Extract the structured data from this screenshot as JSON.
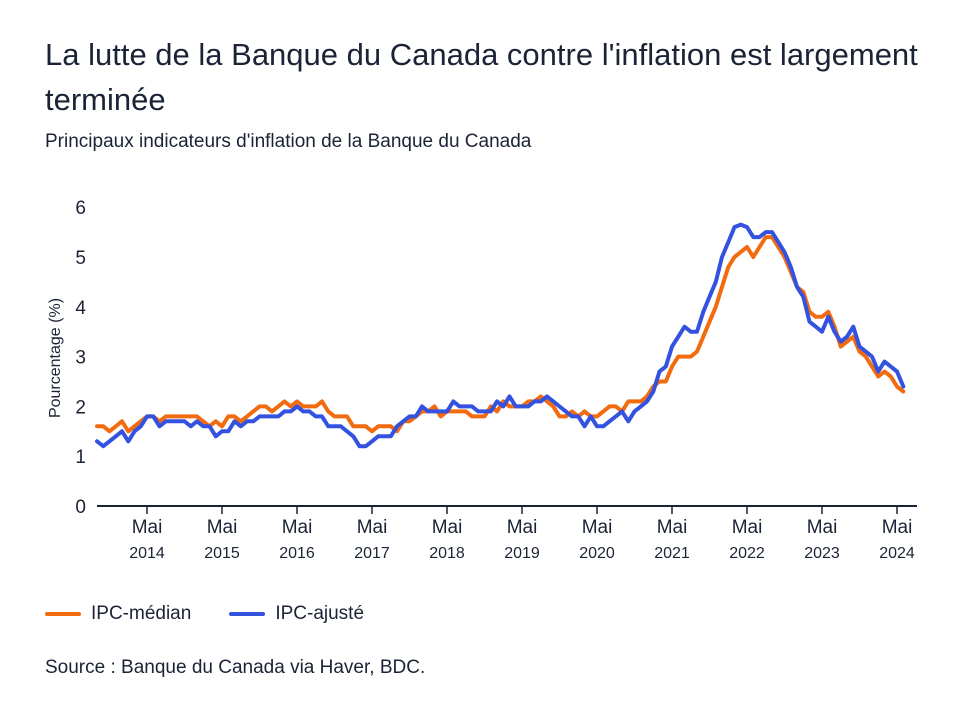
{
  "title": "La lutte de la Banque du Canada contre l'inflation est largement terminée",
  "subtitle": "Principaux indicateurs d'inflation de la Banque du Canada",
  "source": "Source : Banque du Canada via Haver, BDC.",
  "chart_data": {
    "type": "line",
    "ylabel": "Pourcentage (%)",
    "xlabel": "",
    "ylim": [
      0,
      6
    ],
    "yticks": [
      "0",
      "1",
      "2",
      "3",
      "4",
      "5",
      "6"
    ],
    "x_frequency": "monthly",
    "x_start": "2013-09",
    "x_end": "2024-06",
    "xticks": [
      {
        "month": "Mai",
        "year": "2014"
      },
      {
        "month": "Mai",
        "year": "2015"
      },
      {
        "month": "Mai",
        "year": "2016"
      },
      {
        "month": "Mai",
        "year": "2017"
      },
      {
        "month": "Mai",
        "year": "2018"
      },
      {
        "month": "Mai",
        "year": "2019"
      },
      {
        "month": "Mai",
        "year": "2020"
      },
      {
        "month": "Mai",
        "year": "2021"
      },
      {
        "month": "Mai",
        "year": "2022"
      },
      {
        "month": "Mai",
        "year": "2023"
      },
      {
        "month": "Mai",
        "year": "2024"
      }
    ],
    "grid": false,
    "legend_position": "bottom-left",
    "series": [
      {
        "name": "IPC-médian",
        "color": "#f26b0f",
        "values": [
          1.6,
          1.6,
          1.5,
          1.6,
          1.7,
          1.5,
          1.6,
          1.7,
          1.8,
          1.8,
          1.7,
          1.8,
          1.8,
          1.8,
          1.8,
          1.8,
          1.8,
          1.7,
          1.6,
          1.7,
          1.6,
          1.8,
          1.8,
          1.7,
          1.8,
          1.9,
          2.0,
          2.0,
          1.9,
          2.0,
          2.1,
          2.0,
          2.1,
          2.0,
          2.0,
          2.0,
          2.1,
          1.9,
          1.8,
          1.8,
          1.8,
          1.6,
          1.6,
          1.6,
          1.5,
          1.6,
          1.6,
          1.6,
          1.5,
          1.7,
          1.7,
          1.8,
          1.9,
          1.9,
          2.0,
          1.8,
          1.9,
          1.9,
          1.9,
          1.9,
          1.8,
          1.8,
          1.8,
          2.0,
          1.9,
          2.1,
          2.0,
          2.0,
          2.0,
          2.1,
          2.1,
          2.2,
          2.1,
          2.0,
          1.8,
          1.8,
          1.9,
          1.8,
          1.9,
          1.8,
          1.8,
          1.9,
          2.0,
          2.0,
          1.9,
          2.1,
          2.1,
          2.1,
          2.2,
          2.4,
          2.5,
          2.5,
          2.8,
          3.0,
          3.0,
          3.0,
          3.1,
          3.4,
          3.7,
          4.0,
          4.4,
          4.8,
          5.0,
          5.1,
          5.2,
          5.0,
          5.2,
          5.4,
          5.4,
          5.2,
          5.0,
          4.7,
          4.4,
          4.3,
          3.9,
          3.8,
          3.8,
          3.9,
          3.6,
          3.2,
          3.3,
          3.4,
          3.1,
          3.0,
          2.8,
          2.6,
          2.7,
          2.6,
          2.4,
          2.3
        ]
      },
      {
        "name": "IPC-ajusté",
        "color": "#3352e0",
        "values": [
          1.3,
          1.2,
          1.3,
          1.4,
          1.5,
          1.3,
          1.5,
          1.6,
          1.8,
          1.8,
          1.6,
          1.7,
          1.7,
          1.7,
          1.7,
          1.6,
          1.7,
          1.6,
          1.6,
          1.4,
          1.5,
          1.5,
          1.7,
          1.6,
          1.7,
          1.7,
          1.8,
          1.8,
          1.8,
          1.8,
          1.9,
          1.9,
          2.0,
          1.9,
          1.9,
          1.8,
          1.8,
          1.6,
          1.6,
          1.6,
          1.5,
          1.4,
          1.2,
          1.2,
          1.3,
          1.4,
          1.4,
          1.4,
          1.6,
          1.7,
          1.8,
          1.8,
          2.0,
          1.9,
          1.9,
          1.9,
          1.9,
          2.1,
          2.0,
          2.0,
          2.0,
          1.9,
          1.9,
          1.9,
          2.1,
          2.0,
          2.2,
          2.0,
          2.0,
          2.0,
          2.1,
          2.1,
          2.2,
          2.1,
          2.0,
          1.9,
          1.8,
          1.8,
          1.6,
          1.8,
          1.6,
          1.6,
          1.7,
          1.8,
          1.9,
          1.7,
          1.9,
          2.0,
          2.1,
          2.3,
          2.7,
          2.8,
          3.2,
          3.4,
          3.6,
          3.5,
          3.5,
          3.9,
          4.2,
          4.5,
          5.0,
          5.3,
          5.6,
          5.65,
          5.6,
          5.4,
          5.4,
          5.5,
          5.5,
          5.3,
          5.1,
          4.8,
          4.4,
          4.2,
          3.7,
          3.6,
          3.5,
          3.8,
          3.5,
          3.3,
          3.4,
          3.6,
          3.2,
          3.1,
          3.0,
          2.7,
          2.9,
          2.8,
          2.7,
          2.4
        ]
      }
    ]
  }
}
